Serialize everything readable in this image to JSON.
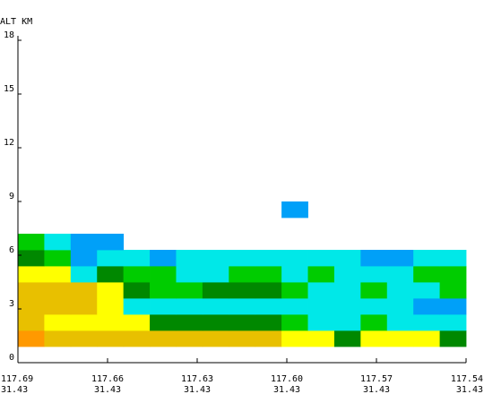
{
  "chart_data": {
    "type": "heatmap",
    "title": "",
    "ylabel": "ALT KM",
    "xlabel": "",
    "ylim": [
      0,
      18
    ],
    "yticks": [
      {
        "value": 0,
        "label": "0"
      },
      {
        "value": 3,
        "label": "3"
      },
      {
        "value": 6,
        "label": "6"
      },
      {
        "value": 9,
        "label": "9"
      },
      {
        "value": 12,
        "label": "12"
      },
      {
        "value": 15,
        "label": "15"
      },
      {
        "value": 18,
        "label": "18"
      }
    ],
    "xticks": [
      {
        "lon": "117.69",
        "lat": "31.43"
      },
      {
        "lon": "117.66",
        "lat": "31.43"
      },
      {
        "lon": "117.63",
        "lat": "31.43"
      },
      {
        "lon": "117.60",
        "lat": "31.43"
      },
      {
        "lon": "117.57",
        "lat": "31.43"
      },
      {
        "lon": "117.54",
        "lat": "31.43"
      }
    ],
    "columns": 17,
    "level_height_km": 0.9,
    "palette": {
      "A": "#ff9900",
      "B": "#e8c000",
      "C": "#ffff00",
      "D": "#008800",
      "E": "#00cc00",
      "F": "#00e8e8",
      "G": "#00a0f8"
    },
    "rows_bottom_to_top": [
      "ABBBBBBBBBCCDCCCD",
      "BCCCCDDDDDEFFEFFF",
      "BBBCFFFFFFFFFFFGG",
      "BBBCDEEDDDEFFEFFE",
      "CCFDEEFFEEFEFFFEE",
      "DEGFFGFFFFFFFGGFF",
      "EFGGOOOOOOOOOOOOO",
      "OOOOOOOOOOOOOOOOO",
      "OOOOOOOOOOGOOOOOO"
    ]
  }
}
